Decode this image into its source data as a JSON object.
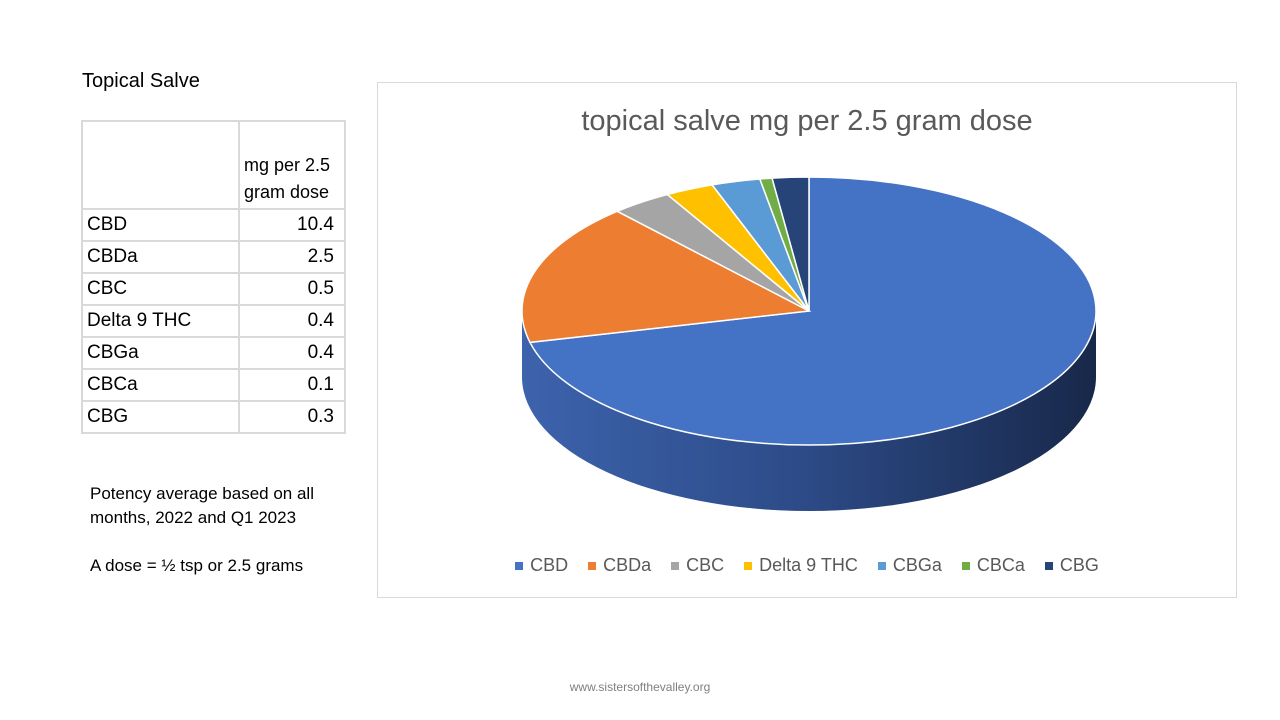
{
  "heading": "Topical Salve",
  "table": {
    "header": "mg per 2.5 gram dose",
    "rows": [
      {
        "label": "CBD",
        "value": "10.4"
      },
      {
        "label": "CBDa",
        "value": "2.5"
      },
      {
        "label": "CBC",
        "value": "0.5"
      },
      {
        "label": "Delta 9 THC",
        "value": "0.4"
      },
      {
        "label": "CBGa",
        "value": "0.4"
      },
      {
        "label": "CBCa",
        "value": "0.1"
      },
      {
        "label": "CBG",
        "value": "0.3"
      }
    ]
  },
  "notes": {
    "line1": "Potency average based on all months, 2022 and Q1 2023",
    "line2": "A dose = ½ tsp or 2.5 grams"
  },
  "footer": "www.sistersofthevalley.org",
  "chart_data": {
    "type": "pie",
    "title": "topical salve mg per 2.5 gram dose",
    "categories": [
      "CBD",
      "CBDa",
      "CBC",
      "Delta 9 THC",
      "CBGa",
      "CBCa",
      "CBG"
    ],
    "values": [
      10.4,
      2.5,
      0.5,
      0.4,
      0.4,
      0.1,
      0.3
    ],
    "colors": [
      "#4472c4",
      "#ed7d31",
      "#a5a5a5",
      "#ffc000",
      "#5b9bd5",
      "#70ad47",
      "#264478"
    ],
    "legend": "bottom",
    "style": "3d"
  }
}
